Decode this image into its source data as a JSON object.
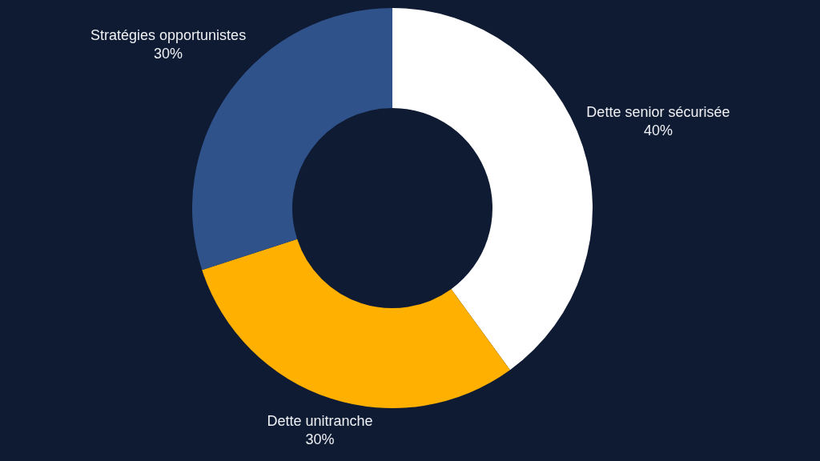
{
  "chart_data": {
    "type": "donut",
    "categories": [
      "Dette senior sécurisée",
      "Dette unitranche",
      "Stratégies opportunistes"
    ],
    "values": [
      40,
      30,
      30
    ],
    "colors": [
      "#ffffff",
      "#ffb000",
      "#30528a"
    ],
    "value_labels": [
      "40%",
      "30%",
      "30%"
    ]
  }
}
